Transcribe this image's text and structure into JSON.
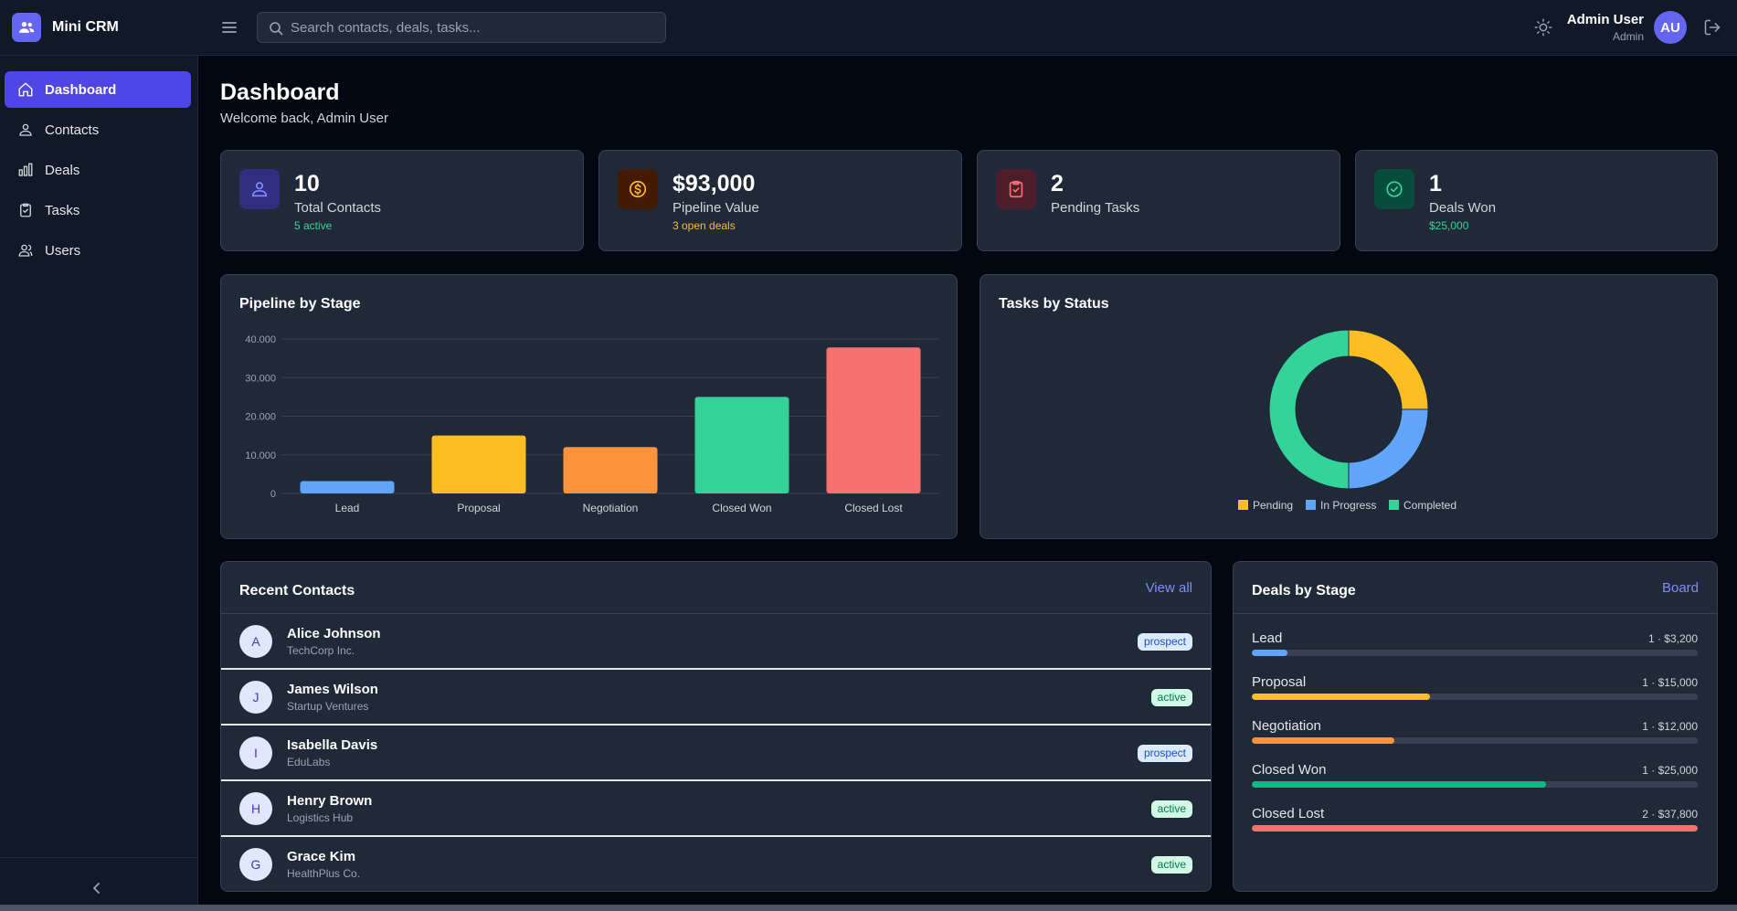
{
  "app": {
    "name": "Mini CRM"
  },
  "search": {
    "placeholder": "Search contacts, deals, tasks..."
  },
  "user": {
    "name": "Admin User",
    "role": "Admin",
    "initials": "AU"
  },
  "sidebar": {
    "items": [
      {
        "label": "Dashboard",
        "icon": "home-icon",
        "active": true
      },
      {
        "label": "Contacts",
        "icon": "contacts-icon",
        "active": false
      },
      {
        "label": "Deals",
        "icon": "bar-chart-icon",
        "active": false
      },
      {
        "label": "Tasks",
        "icon": "clipboard-icon",
        "active": false
      },
      {
        "label": "Users",
        "icon": "users-icon",
        "active": false
      }
    ]
  },
  "page": {
    "title": "Dashboard",
    "subtitle": "Welcome back, Admin User"
  },
  "stats": [
    {
      "value": "10",
      "label": "Total Contacts",
      "sub": "5 active",
      "icon": "contacts-icon",
      "accent": "#818cf8",
      "sub_color": "#34d399"
    },
    {
      "value": "$93,000",
      "label": "Pipeline Value",
      "sub": "3 open deals",
      "icon": "dollar-icon",
      "accent": "#fbbf24",
      "sub_color": "#fbbf24"
    },
    {
      "value": "2",
      "label": "Pending Tasks",
      "sub": "",
      "icon": "clipboard-check-icon",
      "accent": "#f87171",
      "sub_color": "#f87171"
    },
    {
      "value": "1",
      "label": "Deals Won",
      "sub": "$25,000",
      "icon": "check-circle-icon",
      "accent": "#34d399",
      "sub_color": "#34d399"
    }
  ],
  "pipeline": {
    "title": "Pipeline by Stage",
    "chart_data": {
      "type": "bar",
      "title": "Pipeline by Stage",
      "categories": [
        "Lead",
        "Proposal",
        "Negotiation",
        "Closed Won",
        "Closed Lost"
      ],
      "values": [
        3200,
        15000,
        12000,
        25000,
        37800
      ],
      "colors": [
        "#60a5fa",
        "#fbbf24",
        "#fb923c",
        "#34d399",
        "#f87171"
      ],
      "ylim": [
        0,
        40000
      ],
      "yticks": [
        0,
        10000,
        20000,
        30000,
        40000
      ],
      "ytick_labels": [
        "0",
        "10.000",
        "20.000",
        "30.000",
        "40.000"
      ],
      "grid": true
    }
  },
  "tasks": {
    "title": "Tasks by Status",
    "chart_data": {
      "type": "pie",
      "title": "Tasks by Status",
      "labels": [
        "Pending",
        "In Progress",
        "Completed"
      ],
      "values": [
        2,
        2,
        4
      ],
      "colors": [
        "#fbbf24",
        "#60a5fa",
        "#34d399"
      ],
      "legend": "bottom"
    }
  },
  "recent_contacts": {
    "title": "Recent Contacts",
    "link": "View all",
    "items": [
      {
        "initial": "A",
        "name": "Alice Johnson",
        "company": "TechCorp Inc.",
        "status": "prospect"
      },
      {
        "initial": "J",
        "name": "James Wilson",
        "company": "Startup Ventures",
        "status": "active"
      },
      {
        "initial": "I",
        "name": "Isabella Davis",
        "company": "EduLabs",
        "status": "prospect"
      },
      {
        "initial": "H",
        "name": "Henry Brown",
        "company": "Logistics Hub",
        "status": "active"
      },
      {
        "initial": "G",
        "name": "Grace Kim",
        "company": "HealthPlus Co.",
        "status": "active"
      }
    ]
  },
  "deals_by_stage": {
    "title": "Deals by Stage",
    "link": "Board",
    "items": [
      {
        "stage": "Lead",
        "meta": "1 · $3,200",
        "fraction": 0.08,
        "color": "#60a5fa"
      },
      {
        "stage": "Proposal",
        "meta": "1 · $15,000",
        "fraction": 0.4,
        "color": "#fbbf24"
      },
      {
        "stage": "Negotiation",
        "meta": "1 · $12,000",
        "fraction": 0.32,
        "color": "#fb923c"
      },
      {
        "stage": "Closed Won",
        "meta": "1 · $25,000",
        "fraction": 0.66,
        "color": "#10b981"
      },
      {
        "stage": "Closed Lost",
        "meta": "2 · $37,800",
        "fraction": 1.0,
        "color": "#f87171"
      }
    ]
  }
}
